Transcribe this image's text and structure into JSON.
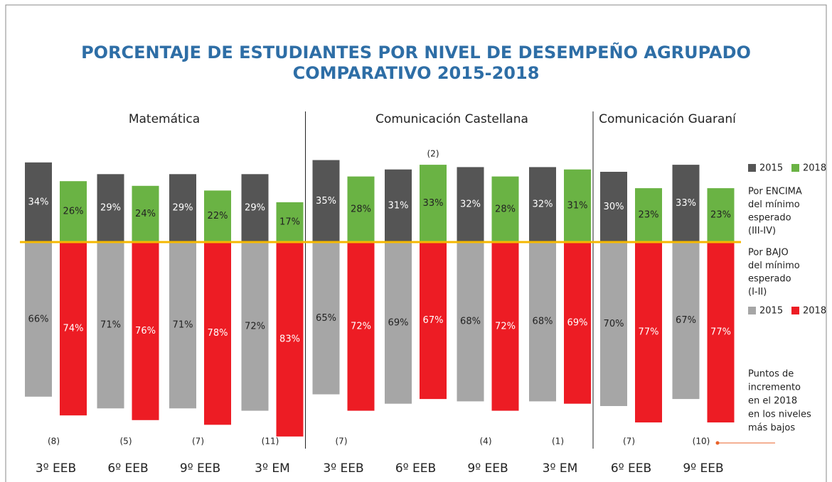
{
  "title": [
    "PORCENTAJE DE ESTUDIANTES POR NIVEL DE DESEMPEÑO AGRUPADO",
    "COMPARATIVO 2015-2018"
  ],
  "legend": {
    "above": [
      "Por ENCIMA",
      "del mínimo",
      "esperado",
      "(III-IV)"
    ],
    "below": [
      "Por BAJO",
      "del mínimo",
      "esperado",
      "(I-II)"
    ],
    "increment": [
      "Puntos de",
      "incremento",
      "en el 2018",
      "en los niveles",
      "más bajos"
    ]
  },
  "chart_data": [
    {
      "type": "bar",
      "title": "Matemática",
      "categories": [
        "3º EEB",
        "6º EEB",
        "9º EEB",
        "3º EM"
      ],
      "ylim": [
        -90,
        38
      ],
      "series": [
        {
          "name": "2015",
          "color": "#555555",
          "side": "above",
          "values": [
            34,
            29,
            29,
            29
          ],
          "value_labels": [
            "34%",
            "29%",
            "29%",
            "29%"
          ]
        },
        {
          "name": "2018",
          "color": "#6ab344",
          "side": "above",
          "values": [
            26,
            24,
            22,
            17
          ],
          "value_labels": [
            "26%",
            "24%",
            "22%",
            "17%"
          ]
        },
        {
          "name": "2015",
          "color": "#a6a6a6",
          "side": "below",
          "values": [
            66,
            71,
            71,
            72
          ],
          "value_labels": [
            "66%",
            "71%",
            "71%",
            "72%"
          ]
        },
        {
          "name": "2018",
          "color": "#ed1c24",
          "side": "below",
          "values": [
            74,
            76,
            78,
            83
          ],
          "value_labels": [
            "74%",
            "76%",
            "78%",
            "83%"
          ]
        }
      ],
      "annotations": [
        "(8)",
        "(5)",
        "(7)",
        "(11)"
      ]
    },
    {
      "type": "bar",
      "title": "Comunicación Castellana",
      "categories": [
        "3º EEB",
        "6º EEB",
        "9º EEB",
        "3º EM"
      ],
      "ylim": [
        -90,
        38
      ],
      "series": [
        {
          "name": "2015",
          "color": "#555555",
          "side": "above",
          "values": [
            35,
            31,
            32,
            32
          ],
          "value_labels": [
            "35%",
            "31%",
            "32%",
            "32%"
          ]
        },
        {
          "name": "2018",
          "color": "#6ab344",
          "side": "above",
          "values": [
            28,
            33,
            28,
            31
          ],
          "value_labels": [
            "28%",
            "33%",
            "28%",
            "31%"
          ]
        },
        {
          "name": "2015",
          "color": "#a6a6a6",
          "side": "below",
          "values": [
            65,
            69,
            68,
            68
          ],
          "value_labels": [
            "65%",
            "69%",
            "68%",
            "68%"
          ]
        },
        {
          "name": "2018",
          "color": "#ed1c24",
          "side": "below",
          "values": [
            72,
            67,
            72,
            69
          ],
          "value_labels": [
            "72%",
            "67%",
            "72%",
            "69%"
          ]
        }
      ],
      "annotations": [
        "(7)",
        null,
        "(4)",
        "(1)"
      ],
      "top_annotations": [
        null,
        "(2)",
        null,
        null
      ]
    },
    {
      "type": "bar",
      "title": "Comunicación Guaraní",
      "categories": [
        "6º EEB",
        "9º EEB"
      ],
      "ylim": [
        -90,
        38
      ],
      "series": [
        {
          "name": "2015",
          "color": "#555555",
          "side": "above",
          "values": [
            30,
            33
          ],
          "value_labels": [
            "30%",
            "33%"
          ]
        },
        {
          "name": "2018",
          "color": "#6ab344",
          "side": "above",
          "values": [
            23,
            23
          ],
          "value_labels": [
            "23%",
            "23%"
          ]
        },
        {
          "name": "2015",
          "color": "#a6a6a6",
          "side": "below",
          "values": [
            70,
            67
          ],
          "value_labels": [
            "70%",
            "67%"
          ]
        },
        {
          "name": "2018",
          "color": "#ed1c24",
          "side": "below",
          "values": [
            77,
            77
          ],
          "value_labels": [
            "77%",
            "77%"
          ]
        }
      ],
      "annotations": [
        "(7)",
        "(10)"
      ]
    }
  ]
}
